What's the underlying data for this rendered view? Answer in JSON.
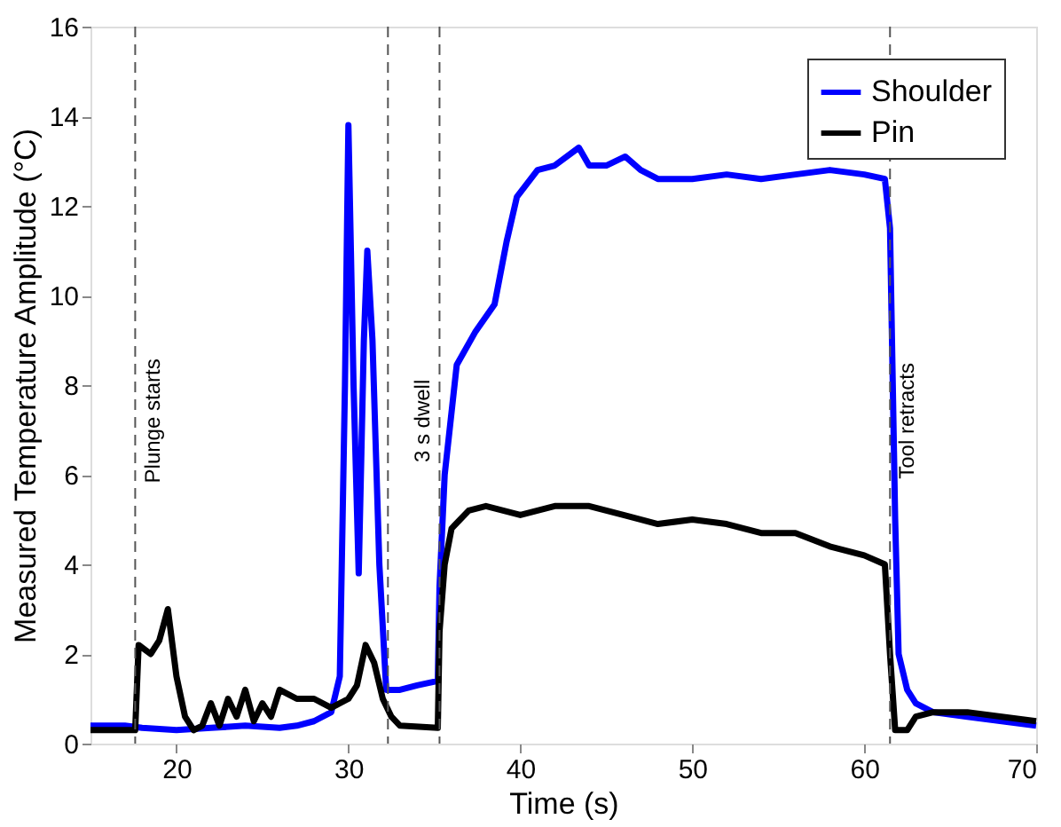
{
  "chart_data": {
    "type": "line",
    "xlabel": "Time (s)",
    "ylabel": "Measured Temperature Amplitude (°C)",
    "xlim": [
      15,
      70
    ],
    "xticks": [
      20,
      30,
      40,
      50,
      60,
      70
    ],
    "ylim": [
      0,
      16
    ],
    "yticks": [
      0,
      2,
      4,
      6,
      8,
      10,
      12,
      14,
      16
    ],
    "grid": false,
    "legend": "top right",
    "line_style": "solid",
    "marker": "none",
    "series": [
      {
        "name": "Shoulder",
        "color": "#0000ff",
        "x": [
          15,
          17,
          18,
          20,
          22,
          24,
          26,
          27,
          28,
          29,
          29.5,
          29.8,
          30.0,
          30.3,
          30.6,
          30.9,
          31.1,
          31.4,
          31.8,
          32.2,
          33,
          34,
          35.2,
          35.3,
          35.6,
          36.3,
          37.4,
          38.5,
          39.2,
          39.8,
          41.0,
          42.0,
          43.4,
          44.0,
          45.0,
          46.1,
          47,
          48,
          50,
          52,
          54,
          56,
          58,
          60,
          61.2,
          61.5,
          61.8,
          62.0,
          62.5,
          63,
          64,
          66,
          68,
          70
        ],
        "values": [
          0.4,
          0.4,
          0.35,
          0.3,
          0.35,
          0.4,
          0.35,
          0.4,
          0.5,
          0.7,
          1.5,
          8,
          13.8,
          8,
          3.8,
          9,
          11,
          9,
          4,
          1.2,
          1.2,
          1.3,
          1.4,
          3.5,
          6.0,
          8.45,
          9.2,
          9.8,
          11.2,
          12.2,
          12.8,
          12.9,
          13.3,
          12.9,
          12.9,
          13.1,
          12.8,
          12.6,
          12.6,
          12.7,
          12.6,
          12.7,
          12.8,
          12.7,
          12.6,
          11.5,
          5,
          2.0,
          1.2,
          0.9,
          0.7,
          0.6,
          0.5,
          0.4
        ]
      },
      {
        "name": "Pin",
        "color": "#000000",
        "x": [
          15,
          17.6,
          17.8,
          18.5,
          19,
          19.5,
          20,
          20.5,
          21,
          21.5,
          22,
          22.5,
          23,
          23.5,
          24,
          24.5,
          25,
          25.5,
          26,
          27,
          28,
          29,
          30,
          30.5,
          31,
          31.5,
          32,
          32.5,
          33,
          35.2,
          35.3,
          35.6,
          36,
          37,
          38,
          40,
          42,
          44,
          46,
          48,
          50,
          52,
          54,
          56,
          58,
          60,
          61.2,
          61.5,
          61.8,
          62.5,
          63,
          64,
          66,
          68,
          70
        ],
        "values": [
          0.3,
          0.3,
          2.2,
          2.0,
          2.3,
          3.0,
          1.5,
          0.6,
          0.3,
          0.4,
          0.9,
          0.4,
          1.0,
          0.6,
          1.2,
          0.5,
          0.9,
          0.6,
          1.2,
          1.0,
          1.0,
          0.8,
          1.0,
          1.3,
          2.2,
          1.8,
          1.0,
          0.6,
          0.4,
          0.35,
          2.5,
          4.0,
          4.8,
          5.2,
          5.3,
          5.1,
          5.3,
          5.3,
          5.1,
          4.9,
          5.0,
          4.9,
          4.7,
          4.7,
          4.4,
          4.2,
          4.0,
          2.0,
          0.3,
          0.3,
          0.6,
          0.7,
          0.7,
          0.6,
          0.5
        ]
      }
    ],
    "ref_lines": [
      {
        "axis": "x",
        "value": 17.6,
        "label": "Plunge starts",
        "color": "#555555",
        "line_style": "dashed"
      },
      {
        "axis": "x",
        "value": 32.3,
        "label": null,
        "color": "#555555",
        "line_style": "dashed"
      },
      {
        "axis": "x",
        "value": 35.3,
        "label": "3 s dwell",
        "color": "#555555",
        "line_style": "dashed"
      },
      {
        "axis": "x",
        "value": 61.5,
        "label": "Tool retracts",
        "color": "#555555",
        "line_style": "dashed"
      }
    ]
  }
}
